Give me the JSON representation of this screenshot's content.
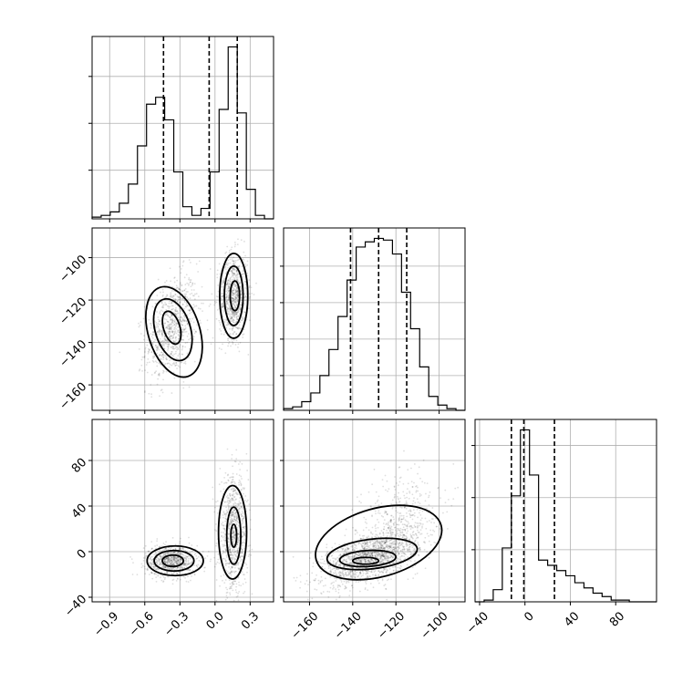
{
  "chart_data": {
    "type": "corner",
    "title": "",
    "parameters": [
      {
        "xlim": [
          -1.05,
          0.5
        ],
        "ticks": [
          -0.9,
          -0.6,
          -0.3,
          0.0,
          0.3
        ],
        "tick_labels": [
          "−0.9",
          "−0.6",
          "−0.3",
          "0.0",
          "0.3"
        ]
      },
      {
        "xlim": [
          -172,
          -88
        ],
        "ticks": [
          -160,
          -140,
          -120,
          -100
        ],
        "tick_labels": [
          "−160",
          "−140",
          "−120",
          "−100"
        ]
      },
      {
        "xlim": [
          -44,
          116
        ],
        "ticks": [
          -40,
          0,
          40,
          80
        ],
        "tick_labels": [
          "−40",
          "0",
          "40",
          "80"
        ]
      }
    ],
    "histograms": [
      {
        "param": 0,
        "bin_edges": [
          -1.05,
          -0.9725,
          -0.895,
          -0.8175,
          -0.74,
          -0.6625,
          -0.585,
          -0.5075,
          -0.43,
          -0.3525,
          -0.275,
          -0.1975,
          -0.12,
          -0.0425,
          0.035,
          0.1125,
          0.19,
          0.2675,
          0.345,
          0.4225,
          0.5
        ],
        "counts": [
          0.01,
          0.02,
          0.04,
          0.09,
          0.2,
          0.42,
          0.66,
          0.7,
          0.57,
          0.27,
          0.07,
          0.02,
          0.06,
          0.27,
          0.63,
          0.99,
          0.61,
          0.17,
          0.02,
          0.0
        ],
        "quantiles": [
          -0.44,
          -0.05,
          0.19
        ],
        "grid_y": [
          0.28,
          0.55,
          0.82
        ]
      },
      {
        "param": 1,
        "bin_edges": [
          -172,
          -167.8,
          -163.6,
          -159.4,
          -155.2,
          -151,
          -146.8,
          -142.6,
          -138.4,
          -134.2,
          -130,
          -125.8,
          -121.6,
          -117.4,
          -113.2,
          -109,
          -104.8,
          -100.6,
          -96.4,
          -92.2,
          -88
        ],
        "counts": [
          0.01,
          0.02,
          0.05,
          0.1,
          0.2,
          0.35,
          0.54,
          0.75,
          0.94,
          0.97,
          0.99,
          0.98,
          0.9,
          0.68,
          0.47,
          0.25,
          0.08,
          0.03,
          0.01,
          0.0
        ],
        "quantiles": [
          -141,
          -128,
          -115
        ],
        "grid_y": [
          0.2,
          0.41,
          0.62,
          0.83
        ]
      },
      {
        "param": 2,
        "bin_edges": [
          -44,
          -36,
          -28,
          -20,
          -12,
          -4,
          4,
          12,
          20,
          28,
          36,
          44,
          52,
          60,
          68,
          76,
          84,
          92,
          100,
          108,
          116
        ],
        "counts": [
          0.0,
          0.01,
          0.07,
          0.31,
          0.61,
          0.99,
          0.73,
          0.24,
          0.21,
          0.18,
          0.15,
          0.11,
          0.08,
          0.05,
          0.03,
          0.01,
          0.01,
          0.0,
          0.0,
          0.0
        ],
        "quantiles": [
          -12,
          -1,
          26
        ],
        "grid_y": [
          0.3,
          0.6,
          0.9
        ]
      }
    ],
    "scatter_2d": [
      {
        "x_param": 0,
        "y_param": 1,
        "modes": [
          {
            "cx": -0.37,
            "cy": -133,
            "sx": 0.11,
            "sy": 12,
            "rho": 0.35,
            "n": 850
          },
          {
            "cx": 0.16,
            "cy": -118,
            "sx": 0.06,
            "sy": 10,
            "rho": 0.05,
            "n": 850
          }
        ],
        "contours": [
          {
            "cx": -0.35,
            "cy": -135,
            "rx": 0.22,
            "ry": 22,
            "rot": 0.5
          },
          {
            "cx": -0.36,
            "cy": -134,
            "rx": 0.15,
            "ry": 15,
            "rot": 0.5
          },
          {
            "cx": -0.37,
            "cy": -133,
            "rx": 0.07,
            "ry": 8,
            "rot": 0.5
          },
          {
            "cx": 0.16,
            "cy": -118,
            "rx": 0.12,
            "ry": 20,
            "rot": 0.0
          },
          {
            "cx": 0.16,
            "cy": -118,
            "rx": 0.08,
            "ry": 14,
            "rot": 0.0
          },
          {
            "cx": 0.17,
            "cy": -118,
            "rx": 0.04,
            "ry": 7,
            "rot": 0.0
          }
        ]
      },
      {
        "x_param": 0,
        "y_param": 2,
        "modes": [
          {
            "cx": -0.37,
            "cy": -8,
            "sx": 0.11,
            "sy": 7,
            "rho": 0.0,
            "n": 850
          },
          {
            "cx": 0.16,
            "cy": 15,
            "sx": 0.06,
            "sy": 25,
            "rho": 0.0,
            "n": 850
          }
        ],
        "contours": [
          {
            "cx": -0.34,
            "cy": -8,
            "rx": 0.24,
            "ry": 13,
            "rot": 0.0
          },
          {
            "cx": -0.35,
            "cy": -8,
            "rx": 0.17,
            "ry": 9,
            "rot": 0.0
          },
          {
            "cx": -0.36,
            "cy": -8,
            "rx": 0.09,
            "ry": 5,
            "rot": 0.0
          },
          {
            "cx": 0.15,
            "cy": 17,
            "rx": 0.12,
            "ry": 41,
            "rot": 0.0
          },
          {
            "cx": 0.16,
            "cy": 14,
            "rx": 0.06,
            "ry": 25,
            "rot": 0.0
          },
          {
            "cx": 0.16,
            "cy": 14,
            "rx": 0.025,
            "ry": 10,
            "rot": 0.0
          }
        ]
      },
      {
        "x_param": 1,
        "y_param": 2,
        "modes": [
          {
            "cx": -132,
            "cy": -5,
            "sx": 11,
            "sy": 12,
            "rho": 0.55,
            "n": 1600
          },
          {
            "cx": -118,
            "cy": 30,
            "sx": 9,
            "sy": 20,
            "rho": 0.2,
            "n": 400
          }
        ],
        "contours": [
          {
            "cx": -128,
            "cy": 8,
            "rx": 30,
            "ry": 30,
            "rot": 0.45
          },
          {
            "cx": -131,
            "cy": -2,
            "rx": 21,
            "ry": 13,
            "rot": 0.2
          },
          {
            "cx": -133,
            "cy": -6,
            "rx": 13,
            "ry": 7,
            "rot": 0.1
          },
          {
            "cx": -134,
            "cy": -8,
            "rx": 6,
            "ry": 3,
            "rot": 0.0
          }
        ]
      }
    ]
  }
}
